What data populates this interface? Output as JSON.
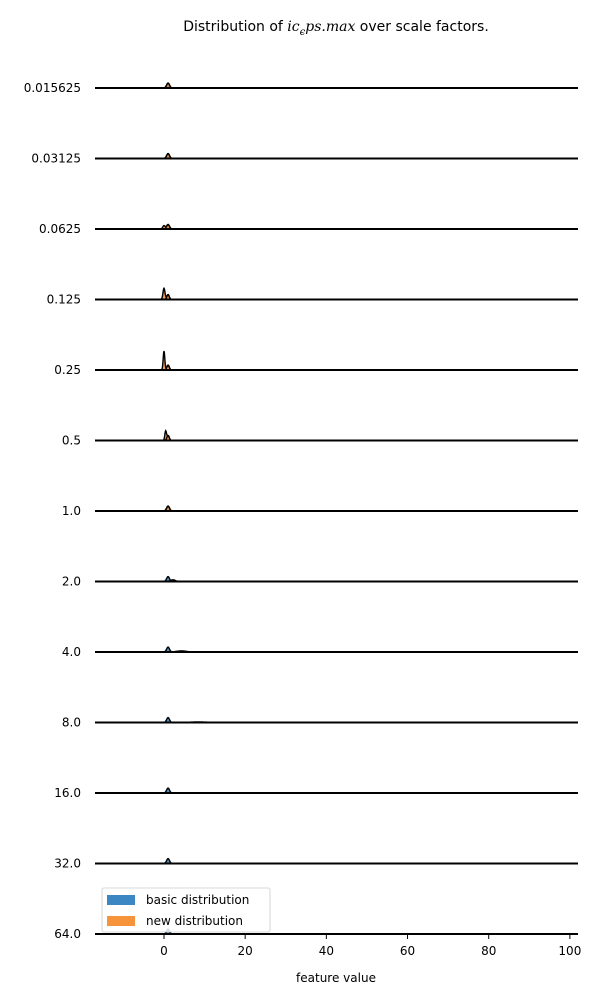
{
  "chart_data": {
    "type": "area",
    "title": {
      "prefix": "Distribution of ",
      "math": "ic",
      "sub": "ϵ",
      "math_rest": "ps.max",
      "suffix": " over scale factors."
    },
    "xlabel": "feature value",
    "xlim": [
      -17,
      102
    ],
    "xticks": [
      "0",
      "20",
      "40",
      "60",
      "80",
      "100"
    ],
    "xtick_values": [
      0,
      20,
      40,
      60,
      80,
      100
    ],
    "grid": false,
    "legend_position": "bottom-left",
    "legend": [
      {
        "label": "basic distribution",
        "color": "#3a87c4"
      },
      {
        "label": "new distribution",
        "color": "#f7943b"
      }
    ],
    "series_colors": {
      "basic": "#3a87c4",
      "new": "#f7943b",
      "outline": "#000000"
    },
    "rows": [
      {
        "label": "0.015625",
        "basic": [
          {
            "x": 1,
            "h": 0.35,
            "w": 0.35
          }
        ],
        "new": [
          {
            "x": 1,
            "h": 0.35,
            "w": 0.35
          }
        ]
      },
      {
        "label": "0.03125",
        "basic": [
          {
            "x": 1,
            "h": 0.35,
            "w": 0.35
          }
        ],
        "new": [
          {
            "x": 1,
            "h": 0.35,
            "w": 0.35
          }
        ]
      },
      {
        "label": "0.0625",
        "basic": [
          {
            "x": 1,
            "h": 0.32,
            "w": 0.35
          }
        ],
        "new": [
          {
            "x": 0,
            "h": 0.24,
            "w": 0.3
          },
          {
            "x": 1,
            "h": 0.32,
            "w": 0.35
          }
        ]
      },
      {
        "label": "0.125",
        "basic": [
          {
            "x": 1,
            "h": 0.35,
            "w": 0.3
          }
        ],
        "new": [
          {
            "x": 0,
            "h": 0.8,
            "w": 0.25
          },
          {
            "x": 1,
            "h": 0.35,
            "w": 0.3
          }
        ]
      },
      {
        "label": "0.25",
        "basic": [
          {
            "x": 1,
            "h": 0.35,
            "w": 0.3
          }
        ],
        "new": [
          {
            "x": 0,
            "h": 1.35,
            "w": 0.2
          },
          {
            "x": 1,
            "h": 0.35,
            "w": 0.3
          }
        ]
      },
      {
        "label": "0.5",
        "basic": [
          {
            "x": 1,
            "h": 0.35,
            "w": 0.3
          }
        ],
        "new": [
          {
            "x": 0.4,
            "h": 0.65,
            "w": 0.2
          },
          {
            "x": 1,
            "h": 0.35,
            "w": 0.3
          }
        ]
      },
      {
        "label": "1.0",
        "basic": [
          {
            "x": 1,
            "h": 0.35,
            "w": 0.35
          }
        ],
        "new": [
          {
            "x": 1,
            "h": 0.35,
            "w": 0.35
          }
        ]
      },
      {
        "label": "2.0",
        "basic": [
          {
            "x": 1,
            "h": 0.35,
            "w": 0.35
          }
        ],
        "new": [
          {
            "x": 2.2,
            "h": 0.12,
            "w": 0.6
          }
        ]
      },
      {
        "label": "4.0",
        "basic": [
          {
            "x": 1,
            "h": 0.35,
            "w": 0.35
          }
        ],
        "new": [
          {
            "x": 4.3,
            "h": 0.08,
            "w": 1.2
          }
        ]
      },
      {
        "label": "8.0",
        "basic": [
          {
            "x": 1,
            "h": 0.35,
            "w": 0.35
          }
        ],
        "new": [
          {
            "x": 8.5,
            "h": 0.04,
            "w": 2.2
          }
        ]
      },
      {
        "label": "16.0",
        "basic": [
          {
            "x": 1,
            "h": 0.35,
            "w": 0.35
          }
        ],
        "new": [
          {
            "x": 17.5,
            "h": 0.02,
            "w": 4
          }
        ]
      },
      {
        "label": "32.0",
        "basic": [
          {
            "x": 1,
            "h": 0.35,
            "w": 0.35
          }
        ],
        "new": [
          {
            "x": 35,
            "h": 0.01,
            "w": 8
          }
        ]
      },
      {
        "label": "64.0",
        "basic": [
          {
            "x": 1,
            "h": 0.35,
            "w": 0.35
          }
        ],
        "new": [
          {
            "x": 65,
            "h": 0.005,
            "w": 16
          }
        ]
      }
    ]
  }
}
